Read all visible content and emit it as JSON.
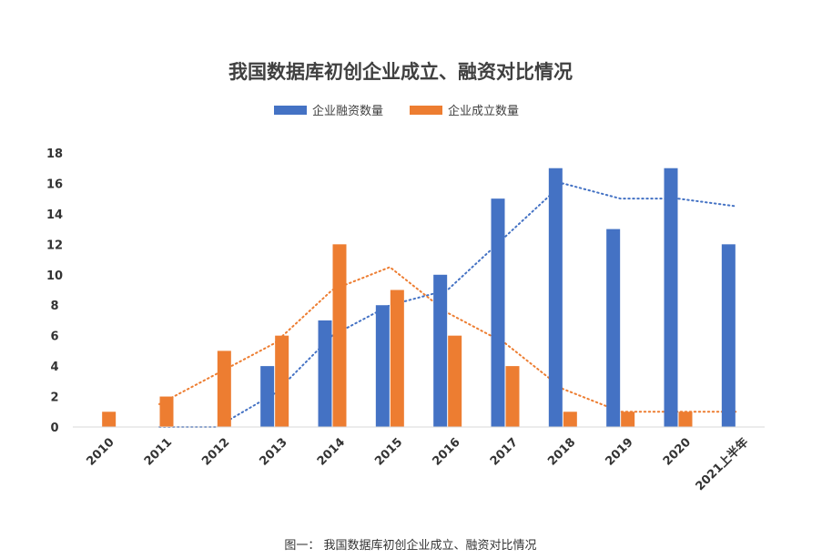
{
  "colors": {
    "financing": "#4472C4",
    "established": "#ED7D31",
    "axis": "#D9D9D9",
    "text": "#404040"
  },
  "chart_data": {
    "type": "bar",
    "title": "我国数据库初创企业成立、融资对比情况",
    "xlabel": "",
    "ylabel": "",
    "categories": [
      "2010",
      "2011",
      "2012",
      "2013",
      "2014",
      "2015",
      "2016",
      "2017",
      "2018",
      "2019",
      "2020",
      "2021上半年"
    ],
    "series": [
      {
        "name": "企业融资数量",
        "values": [
          0,
          0,
          0,
          4,
          7,
          8,
          10,
          15,
          17,
          13,
          17,
          12
        ]
      },
      {
        "name": "企业成立数量",
        "values": [
          1,
          2,
          5,
          6,
          12,
          9,
          6,
          4,
          1,
          1,
          1,
          null
        ]
      }
    ],
    "trendlines": [
      {
        "series": "企业融资数量",
        "style": "dotted",
        "values": [
          null,
          0,
          0,
          2.2,
          6,
          8,
          9,
          12.5,
          16,
          15,
          15,
          14.5
        ]
      },
      {
        "series": "企业成立数量",
        "style": "dotted",
        "values": [
          null,
          1.5,
          3.5,
          5.5,
          9,
          10.5,
          7.5,
          5.5,
          2.5,
          1,
          1,
          1
        ]
      }
    ],
    "ylim": [
      0,
      18
    ],
    "yticks": [
      "0",
      "2",
      "4",
      "6",
      "8",
      "10",
      "12",
      "14",
      "16",
      "18"
    ],
    "grid": false,
    "legend_position": "top"
  },
  "caption": "图一： 我国数据库初创企业成立、融资对比情况"
}
